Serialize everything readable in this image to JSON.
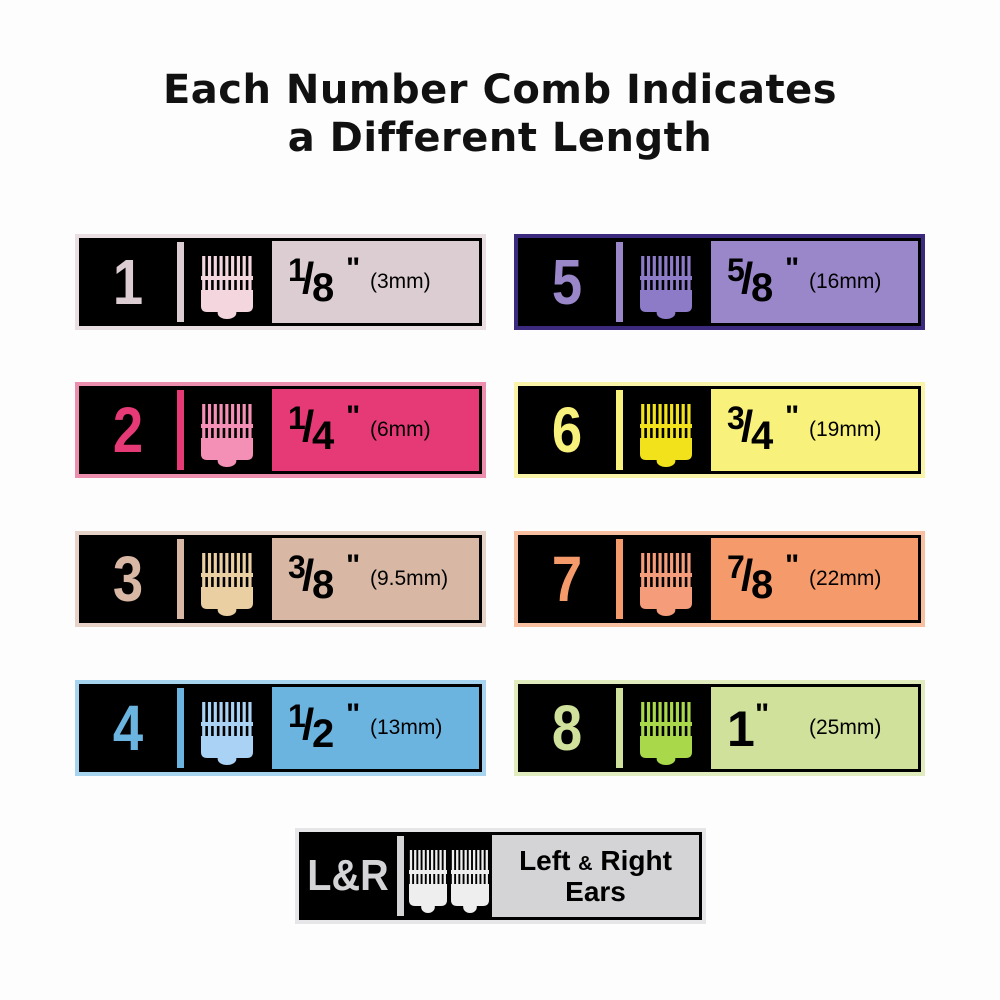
{
  "title": {
    "line1": "Each Number Comb Indicates",
    "line2": "a Different Length"
  },
  "combs": [
    {
      "number": "1",
      "numerator": "1",
      "denominator": "8",
      "mm": "(3mm)",
      "color": "#dccdd3",
      "outer": "#e9dfe3",
      "comb_color": "#f3d6de"
    },
    {
      "number": "2",
      "numerator": "1",
      "denominator": "4",
      "mm": "(6mm)",
      "color": "#e63a77",
      "outer": "#ec8fae",
      "comb_color": "#f48fb5"
    },
    {
      "number": "3",
      "numerator": "3",
      "denominator": "8",
      "mm": "(9.5mm)",
      "color": "#d8b8a4",
      "outer": "#e6d2c6",
      "comb_color": "#e9cfa2"
    },
    {
      "number": "4",
      "numerator": "1",
      "denominator": "2",
      "mm": "(13mm)",
      "color": "#6cb4e0",
      "outer": "#a6d3ee",
      "comb_color": "#a9d2f4"
    },
    {
      "number": "5",
      "numerator": "5",
      "denominator": "8",
      "mm": "(16mm)",
      "color": "#9a87c9",
      "outer": "#3b2a7d",
      "comb_color": "#8d7bc8"
    },
    {
      "number": "6",
      "numerator": "3",
      "denominator": "4",
      "mm": "(19mm)",
      "color": "#f8f27c",
      "outer": "#f9f4a8",
      "comb_color": "#f1e21c"
    },
    {
      "number": "7",
      "numerator": "7",
      "denominator": "8",
      "mm": "(22mm)",
      "color": "#f59b6b",
      "outer": "#f8c0a0",
      "comb_color": "#f59c7a"
    },
    {
      "number": "8",
      "numerator": "1",
      "denominator": "",
      "mm": "(25mm)",
      "color": "#cfe19b",
      "outer": "#e0ecbe",
      "comb_color": "#a9d84a"
    }
  ],
  "ears": {
    "number": "L&R",
    "label_left": "Left",
    "label_amp": "&",
    "label_right": "Right",
    "label_line2": "Ears",
    "color": "#d4d4d6",
    "outer": "#e6e6e8",
    "comb_color": "#eeeeee"
  },
  "quote_mark": "\""
}
